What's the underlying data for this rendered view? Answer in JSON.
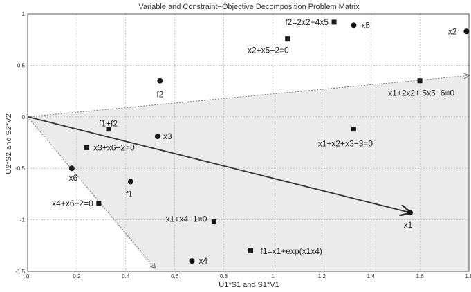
{
  "chart_data": {
    "type": "scatter",
    "title": "Variable and Constraint−Objective Decomposition Problem Matrix",
    "xlabel": "U1*S1 and S1*V1",
    "ylabel": "U2*S2 and S2*V2",
    "xlim": [
      0,
      1.8
    ],
    "ylim": [
      -1.5,
      1
    ],
    "xticks": [
      "0",
      "0.2",
      "0.4",
      "0.6",
      "0.8",
      "1",
      "1.2",
      "1.4",
      "1.6",
      "1.8"
    ],
    "yticks": [
      "-1.5",
      "-1",
      "-0.5",
      "0",
      "0.5",
      "1"
    ],
    "grid": true,
    "series": [
      {
        "marker": "circle",
        "points": [
          {
            "label": "x1",
            "x": 1.56,
            "y": -0.93
          },
          {
            "label": "x2",
            "x": 1.79,
            "y": 0.83
          },
          {
            "label": "x3",
            "x": 0.53,
            "y": -0.19
          },
          {
            "label": "x4",
            "x": 0.67,
            "y": -1.4
          },
          {
            "label": "x5",
            "x": 1.33,
            "y": 0.89
          },
          {
            "label": "x6",
            "x": 0.18,
            "y": -0.5
          },
          {
            "label": "f1",
            "x": 0.42,
            "y": -0.63
          },
          {
            "label": "f2",
            "x": 0.54,
            "y": 0.35
          }
        ]
      },
      {
        "marker": "square",
        "points": [
          {
            "label": "f2=2x2+4x5",
            "x": 1.25,
            "y": 0.92
          },
          {
            "label": "x2+x5−2=0",
            "x": 1.06,
            "y": 0.76
          },
          {
            "label": "x1+2x2+ 5x5−6=0",
            "x": 1.6,
            "y": 0.35
          },
          {
            "label": "f1+f2",
            "x": 0.33,
            "y": -0.12
          },
          {
            "label": "x1+x2+x3−3=0",
            "x": 1.33,
            "y": -0.12
          },
          {
            "label": "x3+x6−2=0",
            "x": 0.24,
            "y": -0.3
          },
          {
            "label": "x4+x6−2=0",
            "x": 0.29,
            "y": -0.84
          },
          {
            "label": "x1+x4−1=0",
            "x": 0.76,
            "y": -1.02
          },
          {
            "label": "f1=x1+exp(x1x4)",
            "x": 0.91,
            "y": -1.3
          }
        ]
      }
    ],
    "vectors": [
      {
        "from": [
          0,
          0
        ],
        "to": [
          1.8,
          0.4
        ],
        "style": "dotted"
      },
      {
        "from": [
          0,
          0
        ],
        "to": [
          0.52,
          -1.47
        ],
        "style": "dotted"
      },
      {
        "from": [
          0,
          0
        ],
        "to": [
          1.56,
          -0.93
        ],
        "style": "solid"
      }
    ],
    "shaded_region": [
      [
        0,
        0
      ],
      [
        1.8,
        0.4
      ],
      [
        1.8,
        -1.5
      ],
      [
        0.52,
        -1.5
      ]
    ]
  }
}
